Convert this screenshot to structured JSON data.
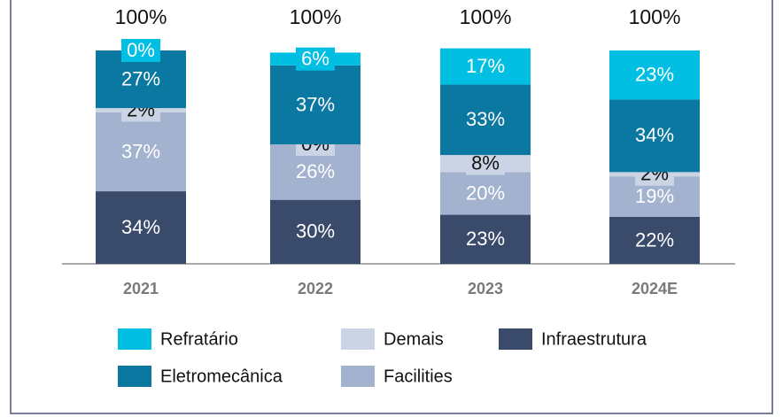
{
  "chart_data": {
    "type": "stacked_bar",
    "categories": [
      "2021",
      "2022",
      "2023",
      "2024E"
    ],
    "series": [
      {
        "name": "Infraestrutura",
        "color": "#3a4a6b",
        "label_color": "#ffffff",
        "values": [
          34,
          30,
          23,
          22
        ],
        "value_labels": [
          "34%",
          "30%",
          "23%",
          "22%"
        ]
      },
      {
        "name": "Facilities",
        "color": "#a2b2cf",
        "label_color": "#ffffff",
        "values": [
          37,
          26,
          20,
          19
        ],
        "value_labels": [
          "37%",
          "26%",
          "20%",
          "19%"
        ]
      },
      {
        "name": "Demais",
        "color": "#cad4e4",
        "label_color": "#111111",
        "values": [
          2,
          0,
          8,
          2
        ],
        "value_labels": [
          "2%",
          "0%",
          "8%",
          "2%"
        ]
      },
      {
        "name": "Eletromecânica",
        "color": "#0a78a0",
        "label_color": "#ffffff",
        "values": [
          27,
          37,
          33,
          34
        ],
        "value_labels": [
          "27%",
          "37%",
          "33%",
          "34%"
        ]
      },
      {
        "name": "Refratário",
        "color": "#00bfe3",
        "label_color": "#ffffff",
        "values": [
          0,
          6,
          17,
          23
        ],
        "value_labels": [
          "0%",
          "6%",
          "17%",
          "23%"
        ]
      }
    ],
    "totals": [
      100,
      100,
      100,
      100
    ],
    "total_labels": [
      "100%",
      "100%",
      "100%",
      "100%"
    ],
    "ylim": [
      0,
      100
    ]
  }
}
